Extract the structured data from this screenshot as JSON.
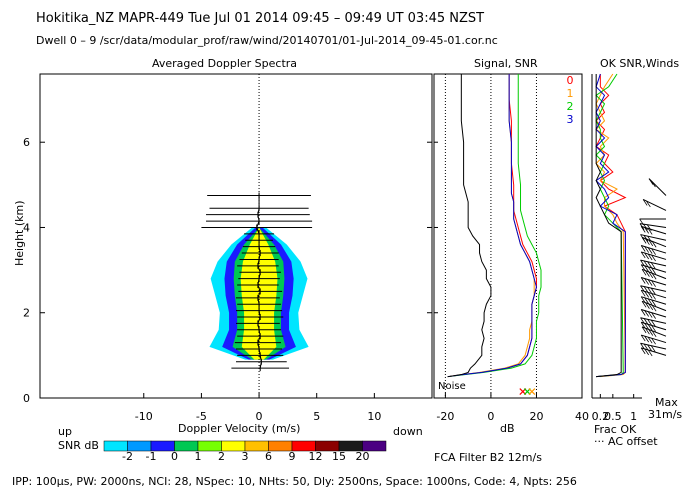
{
  "header": {
    "line1": "Hokitika_NZ   MAPR-449   Tue Jul 01 2014 09:45 – 09:49 UT 03:45 NZST",
    "line2": "Dwell   0 –   9    /scr/data/modular_prof/raw/wind/20140701/01-Jul-2014_09-45-01.cor.nc"
  },
  "chart_data": [
    {
      "type": "heatmap",
      "title": "Averaged Doppler Spectra",
      "xlabel": "Doppler Velocity (m/s)",
      "ylabel": "Height (km)",
      "xlim": [
        -19,
        15
      ],
      "ylim": [
        0,
        7.6
      ],
      "x_ticks": [
        -10,
        -5,
        0,
        5,
        10
      ],
      "y_ticks": [
        0,
        2,
        4,
        6
      ],
      "x_tick_labels": [
        "-10",
        "-5",
        "0",
        "5",
        "10"
      ],
      "y_tick_labels": [
        "0",
        "2",
        "4",
        "6"
      ],
      "direction_left": "up",
      "direction_right": "down",
      "colorbar_label": "SNR dB",
      "colorbar_levels": [
        "-2",
        "-1",
        "0",
        "1",
        "2",
        "3",
        "6",
        "9",
        "12",
        "15",
        "20"
      ],
      "colorbar_colors": [
        "#00e5ff",
        "#0099ff",
        "#1a1aff",
        "#00c853",
        "#76ff03",
        "#ffff00",
        "#ffc000",
        "#ff8000",
        "#ff0000",
        "#8b0000",
        "#1a1a1a",
        "#4b0082"
      ],
      "height_km": [
        0.7,
        0.85,
        1.0,
        1.15,
        1.3,
        1.45,
        1.6,
        1.75,
        1.9,
        2.05,
        2.2,
        2.35,
        2.5,
        2.65,
        2.8,
        2.95,
        3.1,
        3.25,
        3.4,
        3.55,
        3.7,
        3.85,
        4.0,
        4.15,
        4.3,
        4.45,
        4.75
      ],
      "mean_velocity": [
        0.1,
        0.2,
        0.1,
        0.0,
        -0.1,
        0.1,
        0.0,
        -0.1,
        0.1,
        0.0,
        0.0,
        -0.1,
        0.1,
        -0.1,
        0.0,
        0.1,
        -0.1,
        0.0,
        0.1,
        0.0,
        0.0,
        0.0,
        -0.2,
        0.0,
        -0.1,
        0.0,
        0.0
      ],
      "spectral_halfwidth": [
        2.5,
        2.2,
        2.0,
        2.0,
        2.0,
        2.0,
        1.9,
        1.9,
        2.0,
        2.0,
        1.9,
        1.9,
        1.9,
        1.8,
        1.8,
        1.8,
        1.8,
        1.7,
        1.6,
        1.4,
        1.2,
        1.3,
        4.8,
        4.6,
        4.5,
        4.3,
        4.5
      ],
      "snr_contour_halfwidth": {
        "height_km": [
          0.9,
          1.2,
          1.6,
          2.0,
          2.4,
          2.8,
          3.2,
          3.6,
          4.0
        ],
        "-2": [
          1.2,
          4.3,
          3.5,
          3.4,
          3.8,
          4.2,
          3.6,
          2.4,
          0.6
        ],
        "0": [
          0.9,
          3.2,
          2.6,
          2.6,
          2.9,
          3.0,
          2.8,
          1.9,
          0.3
        ],
        "1": [
          0.6,
          2.3,
          1.9,
          1.9,
          2.1,
          2.2,
          2.1,
          1.3,
          0.0
        ],
        "3": [
          0.4,
          1.5,
          1.3,
          1.3,
          1.5,
          1.6,
          1.4,
          0.8,
          0.0
        ]
      }
    },
    {
      "type": "line",
      "title": "Signal, SNR",
      "xlabel": "dB",
      "xlim": [
        -25,
        40
      ],
      "ylim": [
        0,
        7.6
      ],
      "x_ticks": [
        -20,
        0,
        20,
        40
      ],
      "x_tick_labels": [
        "-20",
        "0",
        "20",
        "40"
      ],
      "noise_label": "Noise",
      "height_km": [
        0.5,
        0.55,
        0.6,
        0.7,
        0.8,
        1.0,
        1.2,
        1.4,
        1.6,
        1.8,
        2.0,
        2.2,
        2.4,
        2.6,
        2.8,
        3.0,
        3.2,
        3.4,
        3.6,
        3.8,
        4.0,
        4.2,
        4.4,
        4.6,
        4.8,
        5.0,
        5.5,
        6.0,
        6.5,
        7.0,
        7.6
      ],
      "series": [
        {
          "name": "0",
          "color": "#ff0000",
          "values": [
            -19,
            -12,
            -4,
            7,
            13,
            16,
            17,
            18,
            18,
            18,
            18,
            18,
            19,
            20,
            20,
            19,
            18,
            16,
            14,
            13,
            12,
            11,
            10,
            10,
            10,
            10,
            9,
            9,
            9,
            8,
            8
          ]
        },
        {
          "name": "1",
          "color": "#ff9900",
          "values": [
            -19,
            -12,
            -5,
            6,
            12,
            15,
            16,
            17,
            17,
            18,
            18,
            18,
            19,
            19,
            19,
            18,
            17,
            15,
            13,
            12,
            11,
            10,
            10,
            10,
            9,
            9,
            9,
            9,
            8,
            8,
            8
          ]
        },
        {
          "name": "2",
          "color": "#00cc00",
          "values": [
            -19,
            -11,
            -3,
            9,
            15,
            18,
            19,
            20,
            20,
            20,
            21,
            21,
            21,
            22,
            22,
            22,
            21,
            20,
            18,
            16,
            15,
            14,
            13,
            13,
            13,
            13,
            12,
            12,
            12,
            12,
            12
          ]
        },
        {
          "name": "3",
          "color": "#0000cc",
          "values": [
            -19,
            -12,
            -4,
            7,
            13,
            16,
            17,
            18,
            18,
            18,
            18,
            18,
            19,
            20,
            19,
            18,
            17,
            15,
            13,
            12,
            11,
            10,
            10,
            10,
            9,
            9,
            9,
            9,
            8,
            8,
            8
          ]
        },
        {
          "name": "",
          "color": "#000000",
          "values": [
            -19,
            -13,
            -10,
            -9,
            -7,
            -4,
            -4,
            -3,
            -4,
            -3,
            -3,
            -2,
            0,
            0,
            -2,
            -2,
            -4,
            -5,
            -5,
            -8,
            -10,
            -10,
            -10,
            -10,
            -11,
            -12,
            -12,
            -12,
            -13,
            -13,
            -13
          ]
        }
      ],
      "noise_markers": [
        {
          "x": 14,
          "color": "#ff0000"
        },
        {
          "x": 16,
          "color": "#00cc00"
        },
        {
          "x": 18,
          "color": "#ff9900"
        }
      ]
    },
    {
      "type": "line",
      "title": "OK SNR,Winds",
      "xlim": [
        0,
        1.2
      ],
      "ylim": [
        0,
        7.6
      ],
      "x_ticks": [
        0.2,
        0.5,
        1.0
      ],
      "x_tick_labels": [
        "0.2",
        "0.5",
        "1"
      ],
      "legend": [
        "0",
        "1",
        "2",
        "3"
      ],
      "legend_colors": [
        "#ff0000",
        "#ff9900",
        "#00cc00",
        "#0000cc"
      ],
      "footnote1": "Frac OK",
      "footnote2": "··· AC offset",
      "height_km": [
        0.5,
        0.55,
        0.6,
        3.9,
        4.1,
        4.3,
        4.5,
        4.7,
        4.9,
        5.1,
        5.3,
        5.5,
        5.7,
        5.9,
        6.1,
        6.3,
        6.5,
        6.7,
        6.9,
        7.1,
        7.3,
        7.6
      ],
      "series": [
        {
          "name": "0",
          "color": "#ff0000",
          "values": [
            0.1,
            0.7,
            0.8,
            0.8,
            0.7,
            0.6,
            0.3,
            0.8,
            0.4,
            0.2,
            0.5,
            0.3,
            0.4,
            0.1,
            0.2,
            0.3,
            0.1,
            0.3,
            0.2,
            0.4,
            0.2,
            0.2
          ]
        },
        {
          "name": "1",
          "color": "#ff9900",
          "values": [
            0.2,
            0.75,
            0.8,
            0.75,
            0.6,
            0.5,
            0.3,
            0.3,
            0.6,
            0.2,
            0.3,
            0.1,
            0.3,
            0.2,
            0.4,
            0.1,
            0.3,
            0.2,
            0.1,
            0.2,
            0.3,
            0.5
          ]
        },
        {
          "name": "2",
          "color": "#00cc00",
          "values": [
            0.1,
            0.7,
            0.75,
            0.7,
            0.5,
            0.3,
            0.4,
            0.3,
            0.2,
            0.3,
            0.2,
            0.3,
            0.1,
            0.3,
            0.2,
            0.2,
            0.1,
            0.2,
            0.3,
            0.1,
            0.4,
            0.6
          ]
        },
        {
          "name": "3",
          "color": "#0000cc",
          "values": [
            0.1,
            0.7,
            0.8,
            0.8,
            0.5,
            0.6,
            0.2,
            0.4,
            0.3,
            0.1,
            0.4,
            0.2,
            0.3,
            0.1,
            0.3,
            0.1,
            0.2,
            0.1,
            0.2,
            0.3,
            0.1,
            0.2
          ]
        },
        {
          "name": "",
          "color": "#000000",
          "values": [
            0.1,
            0.6,
            0.7,
            0.7,
            0.4,
            0.3,
            0.2,
            0.1,
            0.2,
            0.1,
            0.2,
            0.1,
            0.1,
            0.1,
            0.1,
            0.1,
            0.1,
            0.1,
            0.1,
            0.1,
            0.1,
            0.1
          ]
        }
      ],
      "wind_height_km": [
        1.0,
        1.15,
        1.3,
        1.45,
        1.6,
        1.75,
        1.9,
        2.05,
        2.2,
        2.35,
        2.5,
        2.65,
        2.8,
        2.95,
        3.1,
        3.25,
        3.4,
        3.55,
        3.7,
        3.85,
        4.0,
        4.2,
        4.4,
        4.75
      ],
      "wind_dir_deg": [
        290,
        285,
        290,
        295,
        290,
        285,
        290,
        295,
        290,
        290,
        285,
        290,
        295,
        290,
        285,
        290,
        290,
        295,
        285,
        290,
        280,
        270,
        300,
        320
      ],
      "wind_speed_ms": [
        20,
        21,
        22,
        22,
        23,
        22,
        22,
        23,
        24,
        23,
        22,
        24,
        25,
        24,
        23,
        22,
        23,
        22,
        20,
        20,
        18,
        5,
        10,
        12
      ],
      "max_label": "Max",
      "max_speed_label": "31m/s"
    }
  ],
  "footer": {
    "filter": "FCA Filter B2 12m/s",
    "params": "IPP: 100μs,  PW: 2000ns,  NCI:  28,  NSpec: 10, NHts: 50,  Dly: 2500ns,  Space: 1000ns,  Code: 4,  Npts: 256"
  },
  "colors": {
    "axes": "#000000",
    "background": "#ffffff"
  }
}
